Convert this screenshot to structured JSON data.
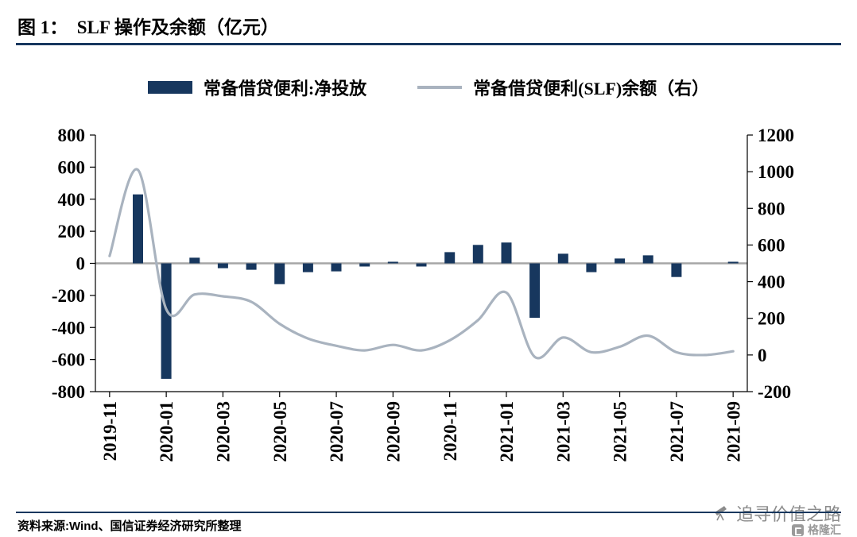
{
  "title": "图 1：  SLF 操作及余额（亿元）",
  "legend": {
    "bar_label": "常备借贷便利:净投放",
    "line_label": "常备借贷便利(SLF)余额（右）"
  },
  "source": "资料来源:Wind、国信证券经济研究所整理",
  "watermark": "追寻价值之路",
  "logo_text": "格隆汇",
  "colors": {
    "navy": "#17375E",
    "line": "#A9B3BF",
    "zero_line": "#A6A6A6",
    "rule": "#17375E",
    "watermark": "#8C8C8C",
    "logo": "#9A9A9A"
  },
  "chart_data": {
    "type": "bar+line",
    "title": "SLF 操作及余额（亿元）",
    "categories": [
      "2019-11",
      "2019-12",
      "2020-01",
      "2020-02",
      "2020-03",
      "2020-04",
      "2020-05",
      "2020-06",
      "2020-07",
      "2020-08",
      "2020-09",
      "2020-10",
      "2020-11",
      "2020-12",
      "2021-01",
      "2021-02",
      "2021-03",
      "2021-04",
      "2021-05",
      "2021-06",
      "2021-07",
      "2021-08",
      "2021-09"
    ],
    "x_tick_every": 2,
    "series": [
      {
        "name": "常备借贷便利:净投放",
        "type": "bar",
        "axis": "left",
        "color": "#17375E",
        "values": [
          0,
          430,
          -720,
          35,
          -30,
          -40,
          -130,
          -55,
          -50,
          -20,
          10,
          -20,
          70,
          115,
          130,
          -340,
          60,
          -55,
          30,
          50,
          -85,
          0,
          10
        ]
      },
      {
        "name": "常备借贷便利(SLF)余额（右）",
        "type": "line",
        "axis": "right",
        "color": "#A9B3BF",
        "values": [
          540,
          1010,
          250,
          330,
          320,
          290,
          170,
          90,
          50,
          25,
          55,
          25,
          80,
          190,
          340,
          -10,
          95,
          15,
          45,
          105,
          15,
          0,
          20
        ]
      }
    ],
    "left_axis": {
      "min": -800,
      "max": 800,
      "ticks": [
        800,
        600,
        400,
        200,
        0,
        -200,
        -400,
        -600,
        -800
      ]
    },
    "right_axis": {
      "min": -200,
      "max": 1200,
      "ticks": [
        1200,
        1000,
        800,
        600,
        400,
        200,
        0,
        -200
      ]
    },
    "grid": false,
    "legend_position": "top"
  }
}
